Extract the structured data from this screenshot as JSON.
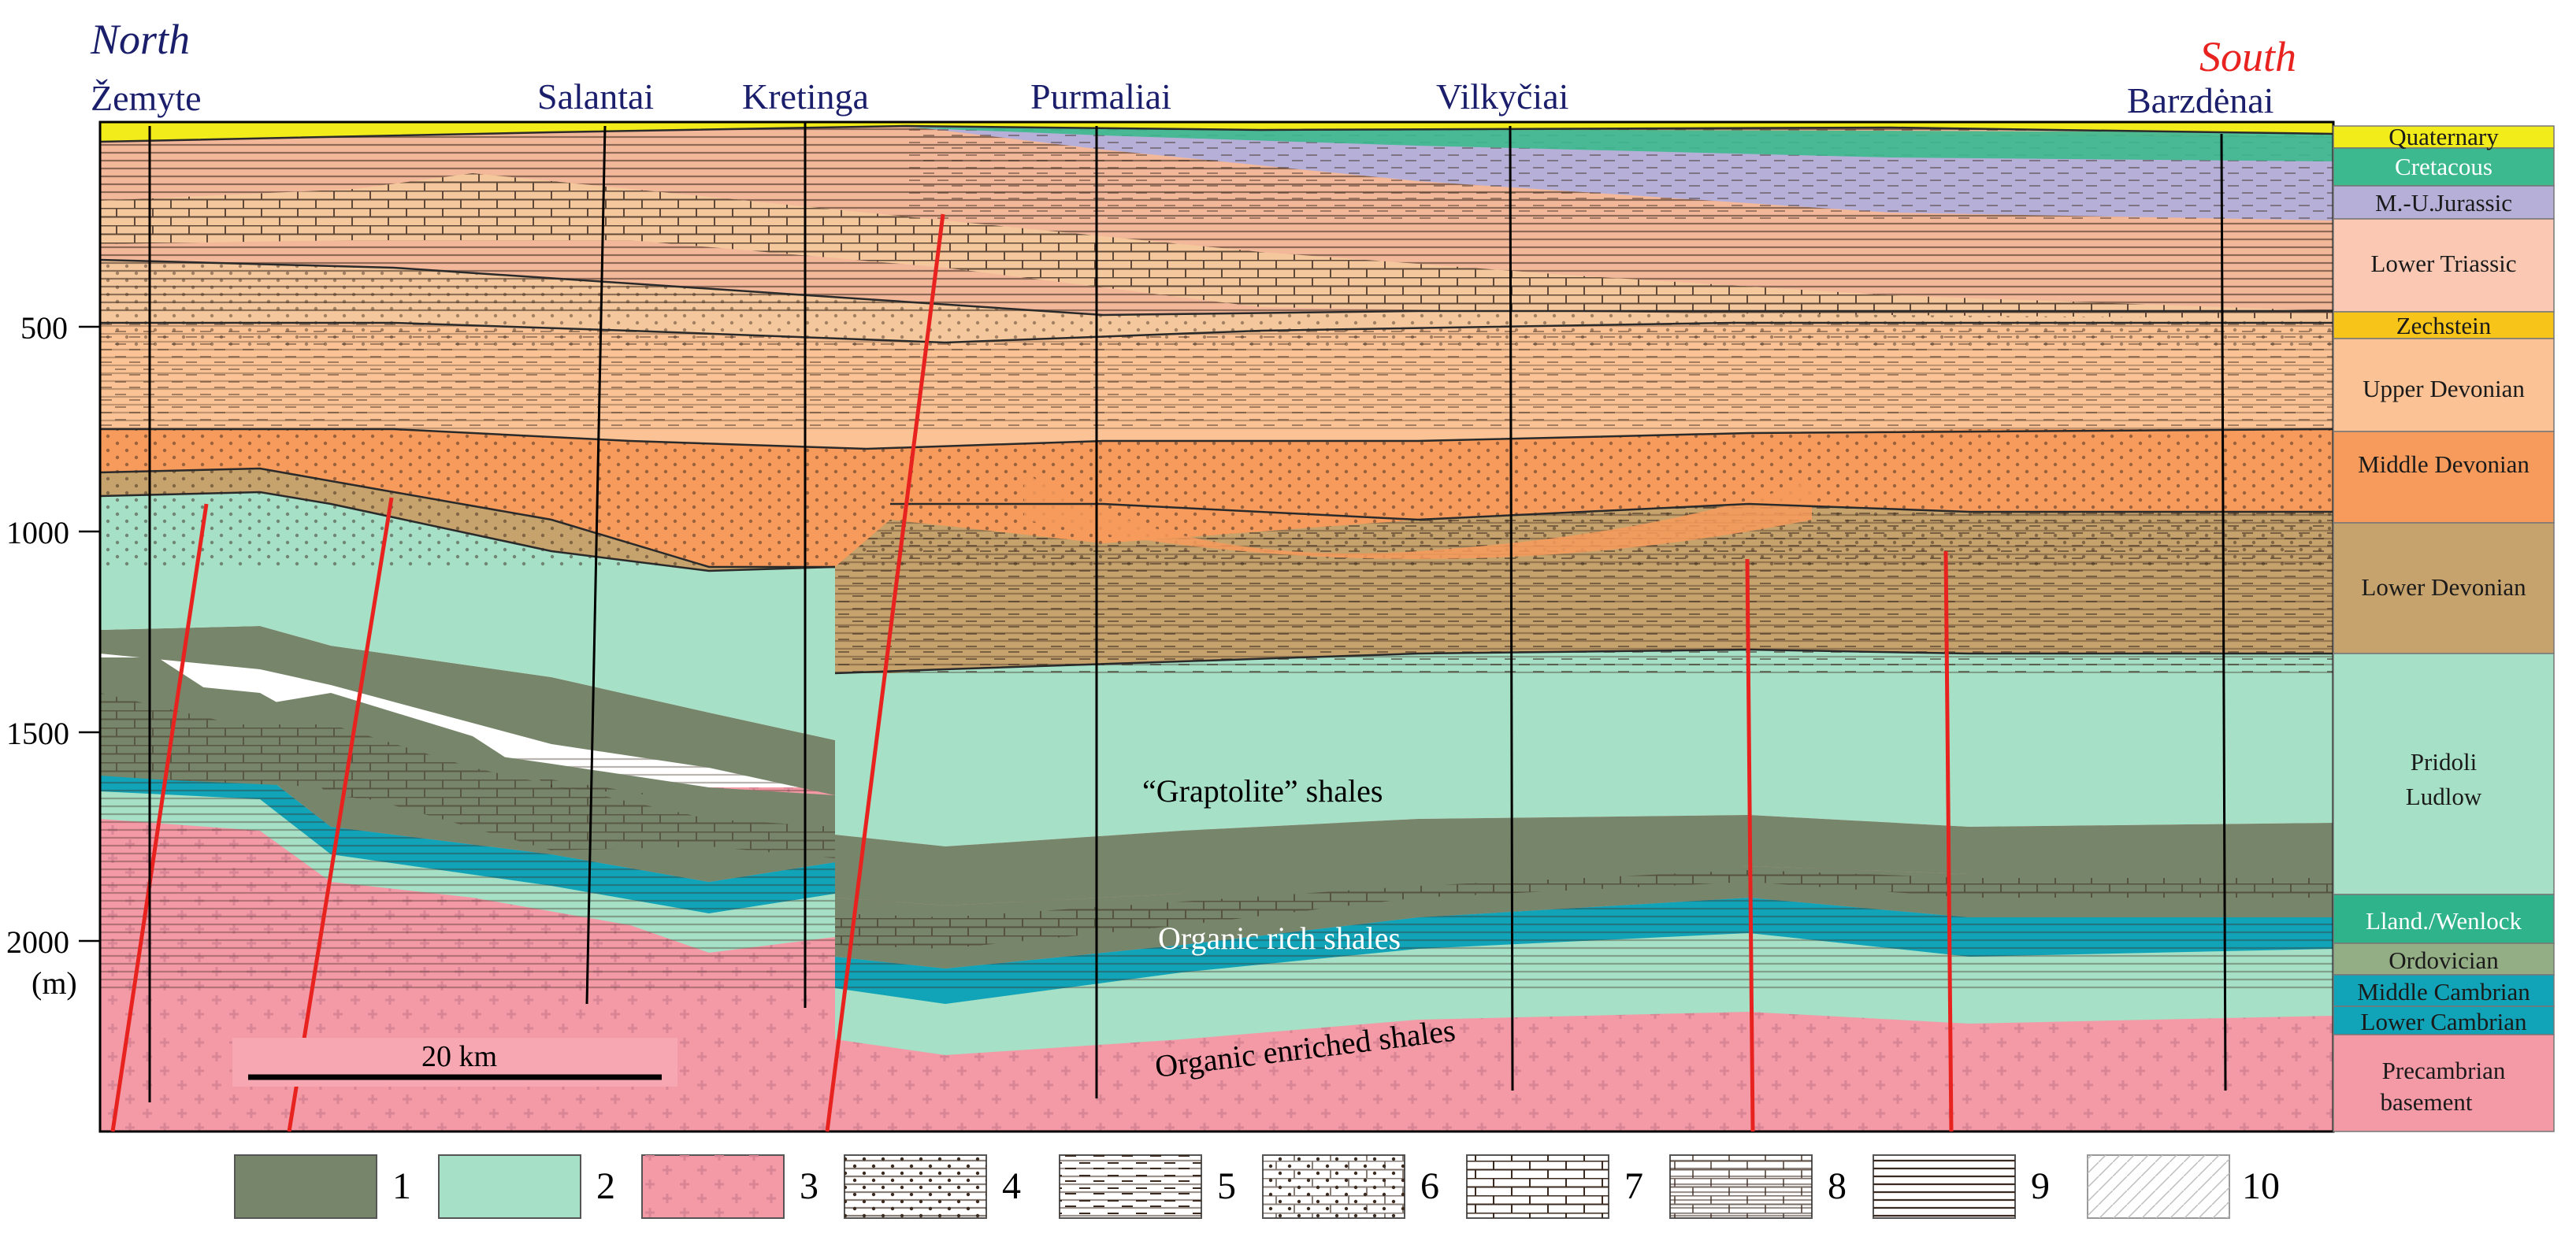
{
  "directions": {
    "north": "North",
    "south": "South"
  },
  "wells": [
    {
      "name": "Žemyte"
    },
    {
      "name": "Salantai"
    },
    {
      "name": "Kretinga"
    },
    {
      "name": "Purmaliai"
    },
    {
      "name": "Vilkyčiai"
    },
    {
      "name": "Barzdėnai"
    }
  ],
  "depth_axis": {
    "ticks": [
      "500",
      "1000",
      "1500",
      "2000"
    ],
    "unit": "(m)"
  },
  "stratigraphy": [
    {
      "label": "Quaternary",
      "color": "#f2ec1a"
    },
    {
      "label": "Cretacous",
      "color": "#3cb98e"
    },
    {
      "label": "M.-U.Jurassic",
      "color": "#b6b0d8"
    },
    {
      "label": "Lower Triassic",
      "color": "#fbc9b3"
    },
    {
      "label": "Zechstein",
      "color": "#f7c51a"
    },
    {
      "label": "Upper Devonian",
      "color": "#fbc395"
    },
    {
      "label": "Middle Devonian",
      "color": "#f79b5c"
    },
    {
      "label": "Lower Devonian",
      "color": "#c6a26c"
    },
    {
      "label": "Pridoli",
      "label2": "Ludlow",
      "color": "#a6e0c6"
    },
    {
      "label": "Lland./Wenlock",
      "color": "#2fb38a"
    },
    {
      "label": "Ordovician",
      "color": "#93ad84"
    },
    {
      "label": "Middle Cambrian",
      "color": "#11a4b8"
    },
    {
      "label": "Lower Cambrian",
      "color": "#11a4b8"
    },
    {
      "label": "Precambrian",
      "label2": "basement",
      "color": "#f49aa6"
    }
  ],
  "annotations": {
    "graptolite": "“Graptolite” shales",
    "organic_rich": "Organic rich shales",
    "organic_enriched": "Organic enriched shales"
  },
  "scale_bar": {
    "label": "20 km"
  },
  "legend": [
    {
      "num": "1",
      "pattern": "solid-olive"
    },
    {
      "num": "2",
      "pattern": "solid-mint"
    },
    {
      "num": "3",
      "pattern": "pink-crosses"
    },
    {
      "num": "4",
      "pattern": "sandstone-dots"
    },
    {
      "num": "5",
      "pattern": "siltstone-dashes"
    },
    {
      "num": "6",
      "pattern": "marl-dotted-brick"
    },
    {
      "num": "7",
      "pattern": "limestone-brick"
    },
    {
      "num": "8",
      "pattern": "dolomite-brick"
    },
    {
      "num": "9",
      "pattern": "shale-lines"
    },
    {
      "num": "10",
      "pattern": "anhydrite-hatch"
    }
  ],
  "colors": {
    "fault": "#e8231f",
    "well_label": "#1b1f6b",
    "north": "#1b1f6b",
    "south": "#e8231f"
  }
}
